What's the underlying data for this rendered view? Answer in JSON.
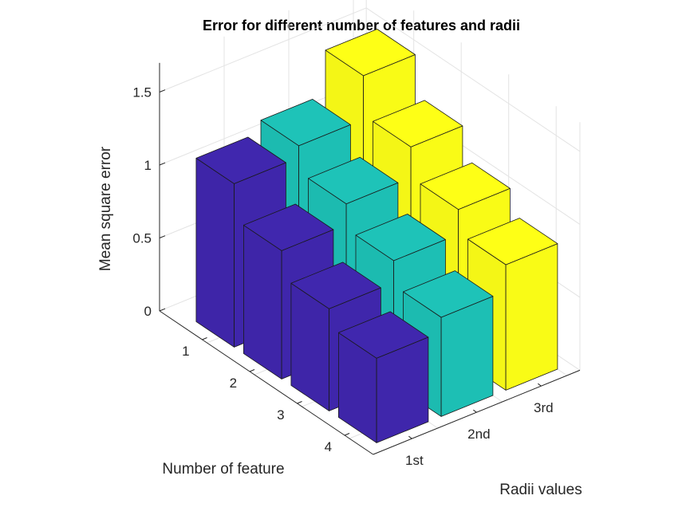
{
  "chart_data": {
    "type": "bar3d",
    "title": "Error for different number of features and radii",
    "xlabel": "Number of feature",
    "ylabel": "Radii values",
    "zlabel": "Mean square error",
    "x_categories": [
      "1",
      "2",
      "3",
      "4"
    ],
    "y_categories": [
      "1st",
      "2nd",
      "3rd"
    ],
    "z_ticks": [
      "0",
      "0.5",
      "1",
      "1.5"
    ],
    "zlim": [
      0,
      1.5
    ],
    "grid": true,
    "series": [
      {
        "name": "",
        "color": "#3F26AB",
        "values": [
          1.12,
          0.88,
          0.7,
          0.58
        ]
      },
      {
        "name": "",
        "color": "#1DBFB4",
        "values": [
          1.2,
          1.02,
          0.85,
          0.68
        ]
      },
      {
        "name": "",
        "color": "#F9FB16",
        "values": [
          1.5,
          1.23,
          1.02,
          0.86
        ]
      }
    ]
  }
}
